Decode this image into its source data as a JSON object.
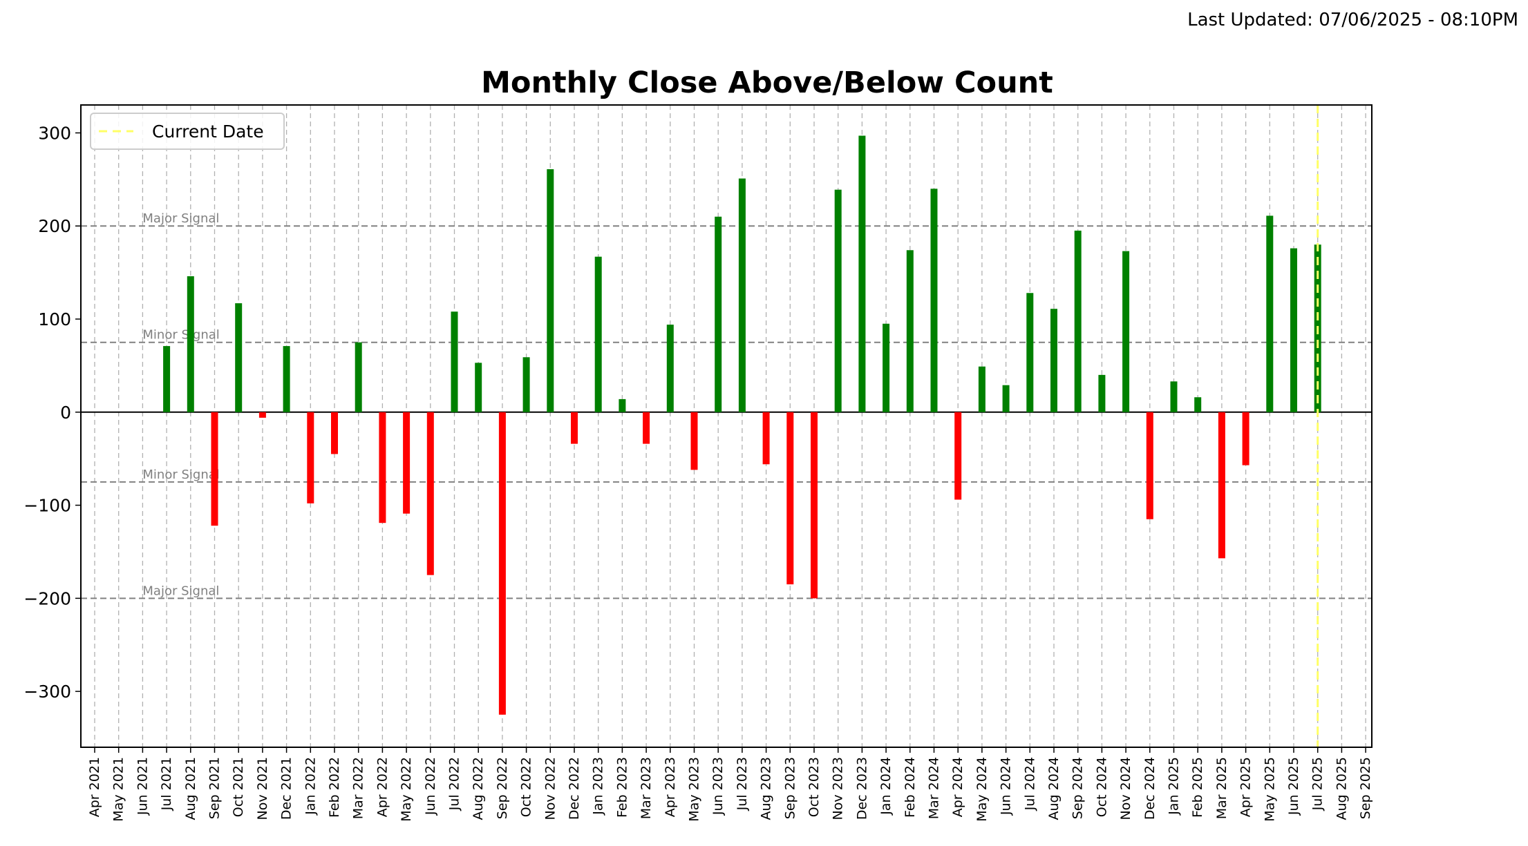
{
  "header": {
    "last_updated": "Last Updated: 07/06/2025 - 08:10PM"
  },
  "chart_data": {
    "type": "bar",
    "title": "Monthly Close Above/Below Count",
    "xlabel": "",
    "ylabel": "",
    "ylim": [
      -360,
      330
    ],
    "yticks": [
      300,
      200,
      100,
      0,
      -100,
      -200,
      -300
    ],
    "grid": "vertical dashed",
    "legend": {
      "position": "top-left",
      "entries": [
        {
          "label": "Current Date",
          "color": "#ffff66"
        }
      ]
    },
    "current_date": "Jul 2025",
    "categories": [
      "Apr 2021",
      "May 2021",
      "Jun 2021",
      "Jul 2021",
      "Aug 2021",
      "Sep 2021",
      "Oct 2021",
      "Nov 2021",
      "Dec 2021",
      "Jan 2022",
      "Feb 2022",
      "Mar 2022",
      "Apr 2022",
      "May 2022",
      "Jun 2022",
      "Jul 2022",
      "Aug 2022",
      "Sep 2022",
      "Oct 2022",
      "Nov 2022",
      "Dec 2022",
      "Jan 2023",
      "Feb 2023",
      "Mar 2023",
      "Apr 2023",
      "May 2023",
      "Jun 2023",
      "Jul 2023",
      "Aug 2023",
      "Sep 2023",
      "Oct 2023",
      "Nov 2023",
      "Dec 2023",
      "Jan 2024",
      "Feb 2024",
      "Mar 2024",
      "Apr 2024",
      "May 2024",
      "Jun 2024",
      "Jul 2024",
      "Aug 2024",
      "Sep 2024",
      "Oct 2024",
      "Nov 2024",
      "Dec 2024",
      "Jan 2025",
      "Feb 2025",
      "Mar 2025",
      "Apr 2025",
      "May 2025",
      "Jun 2025",
      "Jul 2025",
      "Aug 2025",
      "Sep 2025"
    ],
    "values": [
      null,
      null,
      null,
      71,
      146,
      -122,
      117,
      -6,
      71,
      -98,
      -45,
      75,
      -119,
      -109,
      -175,
      108,
      53,
      -325,
      59,
      261,
      -34,
      167,
      14,
      -34,
      94,
      -62,
      210,
      251,
      -56,
      -185,
      -200,
      239,
      297,
      95,
      174,
      240,
      -94,
      49,
      29,
      128,
      111,
      195,
      40,
      173,
      -115,
      33,
      16,
      -157,
      -57,
      211,
      176,
      180,
      null,
      null
    ],
    "reference_lines": [
      {
        "label": "Major Signal",
        "value": 200
      },
      {
        "label": "Minor Signal",
        "value": 75
      },
      {
        "label": "Minor Signal",
        "value": -75
      },
      {
        "label": "Major Signal",
        "value": -200
      }
    ],
    "colors": {
      "positive": "#008000",
      "negative": "#ff0000",
      "reference": "#808080",
      "current_date": "#ffff66",
      "grid": "#b0b0b0"
    }
  }
}
